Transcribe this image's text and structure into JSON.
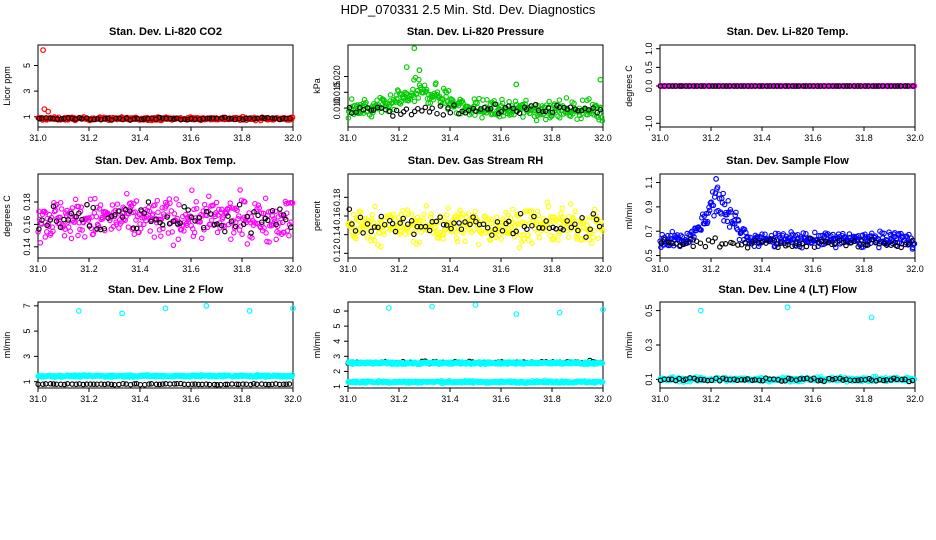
{
  "page_title": "HDP_070331  2.5 Min. Std. Dev. Diagnostics",
  "chart_data": [
    {
      "type": "scatter",
      "title": "Stan. Dev. Li-820 CO2",
      "ylabel": "Licor ppm",
      "xlim": [
        31.0,
        32.0
      ],
      "ylim": [
        0.2,
        6.6
      ],
      "xticks": [
        31.0,
        31.2,
        31.4,
        31.6,
        31.8,
        32.0
      ],
      "xtick_labels": [
        "31.0",
        "31.2",
        "31.4",
        "31.6",
        "31.8",
        "32.0"
      ],
      "yticks": [
        1,
        3,
        5
      ],
      "ytick_labels": [
        "1",
        "3",
        "5"
      ],
      "color": "#ff0000",
      "series": [
        {
          "name": "main",
          "color": "#ff0000",
          "base": 0.85,
          "noise": 0.12,
          "outliers": [
            [
              31.02,
              6.2
            ],
            [
              31.025,
              1.6
            ],
            [
              31.04,
              1.4
            ]
          ]
        },
        {
          "name": "highlight",
          "color": "#000000",
          "base": 0.85,
          "noise": 0.1
        }
      ]
    },
    {
      "type": "scatter",
      "title": "Stan. Dev. Li-820 Pressure",
      "ylabel": "kPa",
      "xlim": [
        31.0,
        32.0
      ],
      "ylim": [
        0.004,
        0.03
      ],
      "xticks": [
        31.0,
        31.2,
        31.4,
        31.6,
        31.8,
        32.0
      ],
      "xtick_labels": [
        "31.0",
        "31.2",
        "31.4",
        "31.6",
        "31.8",
        "32.0"
      ],
      "yticks": [
        0.01,
        0.015,
        0.02
      ],
      "ytick_labels": [
        "0.010",
        "0.015",
        "0.020"
      ],
      "color": "#00cc00",
      "series": [
        {
          "name": "main",
          "color": "#00cc00",
          "base": 0.0095,
          "noise": 0.003,
          "bump": {
            "center": 31.3,
            "width": 0.12,
            "height": 0.006
          },
          "outliers": [
            [
              31.26,
              0.029
            ],
            [
              31.23,
              0.023
            ],
            [
              31.28,
              0.022
            ],
            [
              31.66,
              0.0175
            ],
            [
              31.99,
              0.019
            ]
          ]
        },
        {
          "name": "highlight",
          "color": "#000000",
          "base": 0.0095,
          "noise": 0.002
        }
      ]
    },
    {
      "type": "scatter",
      "title": "Stan. Dev. Li-820 Temp.",
      "ylabel": "degrees C",
      "xlim": [
        31.0,
        32.0
      ],
      "ylim": [
        -1.1,
        1.1
      ],
      "xticks": [
        31.0,
        31.2,
        31.4,
        31.6,
        31.8,
        32.0
      ],
      "xtick_labels": [
        "31.0",
        "31.2",
        "31.4",
        "31.6",
        "31.8",
        "32.0"
      ],
      "yticks": [
        -1.0,
        0.0,
        0.5,
        1.0
      ],
      "ytick_labels": [
        "-1.0",
        "0.0",
        "0.5",
        "1.0"
      ],
      "color": "#ff00ff",
      "series": [
        {
          "name": "main",
          "color": "#ff00ff",
          "base": 0.0,
          "noise": 0.0
        },
        {
          "name": "highlight",
          "color": "#000000",
          "base": 0.0,
          "noise": 0.0
        }
      ]
    },
    {
      "type": "scatter",
      "title": "Stan. Dev. Amb. Box Temp.",
      "ylabel": "degrees C",
      "xlim": [
        31.0,
        32.0
      ],
      "ylim": [
        0.13,
        0.205
      ],
      "xticks": [
        31.0,
        31.2,
        31.4,
        31.6,
        31.8,
        32.0
      ],
      "xtick_labels": [
        "31.0",
        "31.2",
        "31.4",
        "31.6",
        "31.8",
        "32.0"
      ],
      "yticks": [
        0.14,
        0.16,
        0.18
      ],
      "ytick_labels": [
        "0.14",
        "0.16",
        "0.18"
      ],
      "color": "#ff00ff",
      "series": [
        {
          "name": "main",
          "color": "#ff00ff",
          "base": 0.165,
          "noise": 0.018
        },
        {
          "name": "highlight",
          "color": "#000000",
          "base": 0.165,
          "noise": 0.015
        }
      ]
    },
    {
      "type": "scatter",
      "title": "Stan. Dev. Gas Stream RH",
      "ylabel": "percent",
      "xlim": [
        31.0,
        32.0
      ],
      "ylim": [
        0.115,
        0.205
      ],
      "xticks": [
        31.0,
        31.2,
        31.4,
        31.6,
        31.8,
        32.0
      ],
      "xtick_labels": [
        "31.0",
        "31.2",
        "31.4",
        "31.6",
        "31.8",
        "32.0"
      ],
      "yticks": [
        0.12,
        0.14,
        0.16,
        0.18
      ],
      "ytick_labels": [
        "0.12",
        "0.14",
        "0.16",
        "0.18"
      ],
      "color": "#ffff00",
      "series": [
        {
          "name": "main",
          "color": "#ffff00",
          "base": 0.15,
          "noise": 0.018
        },
        {
          "name": "highlight",
          "color": "#000000",
          "base": 0.15,
          "noise": 0.012
        }
      ]
    },
    {
      "type": "scatter",
      "title": "Stan. Dev. Sample Flow",
      "ylabel": "ml/min",
      "xlim": [
        31.0,
        32.0
      ],
      "ylim": [
        0.48,
        1.17
      ],
      "xticks": [
        31.0,
        31.2,
        31.4,
        31.6,
        31.8,
        32.0
      ],
      "xtick_labels": [
        "31.0",
        "31.2",
        "31.4",
        "31.6",
        "31.8",
        "32.0"
      ],
      "yticks": [
        0.5,
        0.7,
        0.9,
        1.1
      ],
      "ytick_labels": [
        "0.5",
        "0.7",
        "0.9",
        "1.1"
      ],
      "color": "#0000ff",
      "series": [
        {
          "name": "main",
          "color": "#0000ff",
          "base": 0.63,
          "noise": 0.06,
          "bump": {
            "center": 31.23,
            "width": 0.07,
            "height": 0.35
          },
          "outliers": [
            [
              31.22,
              1.13
            ]
          ]
        },
        {
          "name": "highlight",
          "color": "#000000",
          "base": 0.6,
          "noise": 0.04
        }
      ]
    },
    {
      "type": "scatter",
      "title": "Stan. Dev. Line 2 Flow",
      "ylabel": "ml/min",
      "xlim": [
        31.0,
        32.0
      ],
      "ylim": [
        0.5,
        7.3
      ],
      "xticks": [
        31.0,
        31.2,
        31.4,
        31.6,
        31.8,
        32.0
      ],
      "xtick_labels": [
        "31.0",
        "31.2",
        "31.4",
        "31.6",
        "31.8",
        "32.0"
      ],
      "yticks": [
        1,
        3,
        5,
        7
      ],
      "ytick_labels": [
        "1",
        "3",
        "5",
        "7"
      ],
      "color": "#00ffff",
      "series": [
        {
          "name": "main",
          "color": "#00ffff",
          "base": 1.45,
          "noise": 0.08,
          "outliers": [
            [
              31.16,
              6.6
            ],
            [
              31.33,
              6.4
            ],
            [
              31.5,
              6.8
            ],
            [
              31.66,
              7.0
            ],
            [
              31.83,
              6.6
            ],
            [
              32.0,
              6.8
            ]
          ]
        },
        {
          "name": "highlight",
          "color": "#000000",
          "base": 0.8,
          "noise": 0.04
        }
      ]
    },
    {
      "type": "scatter",
      "title": "Stan. Dev. Line 3 Flow",
      "ylabel": "ml/min",
      "xlim": [
        31.0,
        32.0
      ],
      "ylim": [
        0.9,
        6.6
      ],
      "xticks": [
        31.0,
        31.2,
        31.4,
        31.6,
        31.8,
        32.0
      ],
      "xtick_labels": [
        "31.0",
        "31.2",
        "31.4",
        "31.6",
        "31.8",
        "32.0"
      ],
      "yticks": [
        1,
        2,
        3,
        4,
        5,
        6
      ],
      "ytick_labels": [
        "1",
        "2",
        "3",
        "4",
        "5",
        "6"
      ],
      "color": "#00ffff",
      "series": [
        {
          "name": "main",
          "color": "#00ffff",
          "base": 1.3,
          "noise": 0.07,
          "outliers": [
            [
              31.16,
              6.2
            ],
            [
              31.33,
              6.3
            ],
            [
              31.5,
              6.4
            ],
            [
              31.66,
              5.8
            ],
            [
              31.83,
              5.9
            ],
            [
              32.0,
              6.1
            ]
          ]
        },
        {
          "name": "highlight",
          "color": "#000000",
          "base": 2.6,
          "noise": 0.08
        },
        {
          "name": "main-upper",
          "color": "#00ffff",
          "base": 2.55,
          "noise": 0.08
        }
      ]
    },
    {
      "type": "scatter",
      "title": "Stan. Dev. Line 4 (LT) Flow",
      "ylabel": "ml/min",
      "xlim": [
        31.0,
        32.0
      ],
      "ylim": [
        0.05,
        0.55
      ],
      "xticks": [
        31.0,
        31.2,
        31.4,
        31.6,
        31.8,
        32.0
      ],
      "xtick_labels": [
        "31.0",
        "31.2",
        "31.4",
        "31.6",
        "31.8",
        "32.0"
      ],
      "yticks": [
        0.1,
        0.3,
        0.5
      ],
      "ytick_labels": [
        "0.1",
        "0.3",
        "0.5"
      ],
      "color": "#00ffff",
      "series": [
        {
          "name": "main",
          "color": "#00ffff",
          "base": 0.1,
          "noise": 0.012,
          "outliers": [
            [
              31.16,
              0.5
            ],
            [
              31.5,
              0.52
            ],
            [
              31.83,
              0.46
            ]
          ]
        },
        {
          "name": "highlight",
          "color": "#000000",
          "base": 0.1,
          "noise": 0.01
        }
      ]
    }
  ]
}
